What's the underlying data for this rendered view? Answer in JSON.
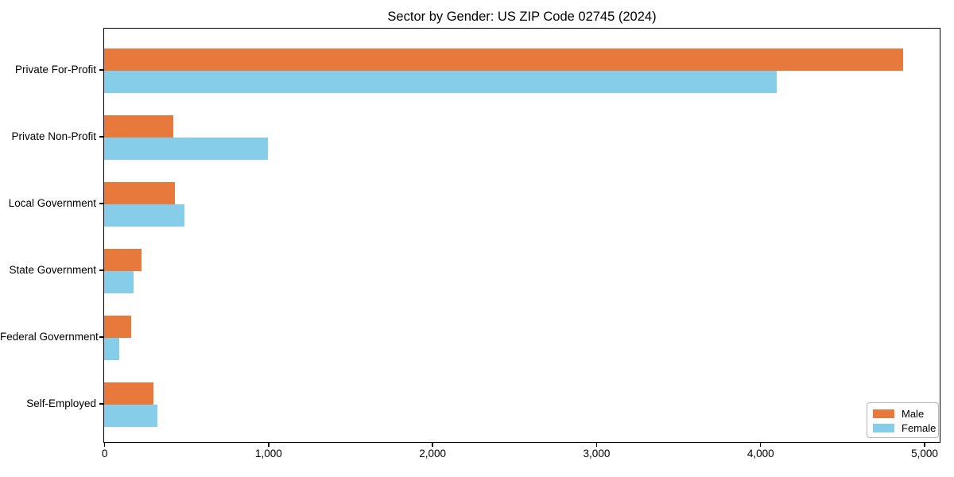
{
  "chart_data": {
    "type": "bar",
    "orientation": "horizontal",
    "title": "Sector by Gender: US ZIP Code 02745 (2024)",
    "categories": [
      "Private For-Profit",
      "Private Non-Profit",
      "Local Government",
      "State Government",
      "Federal Government",
      "Self-Employed"
    ],
    "series": [
      {
        "name": "Male",
        "color": "#E8793C",
        "values": [
          4870,
          420,
          430,
          230,
          165,
          300
        ]
      },
      {
        "name": "Female",
        "color": "#85CDE8",
        "values": [
          4100,
          1000,
          490,
          180,
          90,
          325
        ]
      }
    ],
    "x_ticks": [
      0,
      1000,
      2000,
      3000,
      4000,
      5000
    ],
    "x_tick_labels": [
      "0",
      "1,000",
      "2,000",
      "3,000",
      "4,000",
      "5,000"
    ],
    "xlim": [
      0,
      5090
    ],
    "xlabel": "",
    "ylabel": "",
    "grid": false,
    "legend_position": "lower right"
  }
}
